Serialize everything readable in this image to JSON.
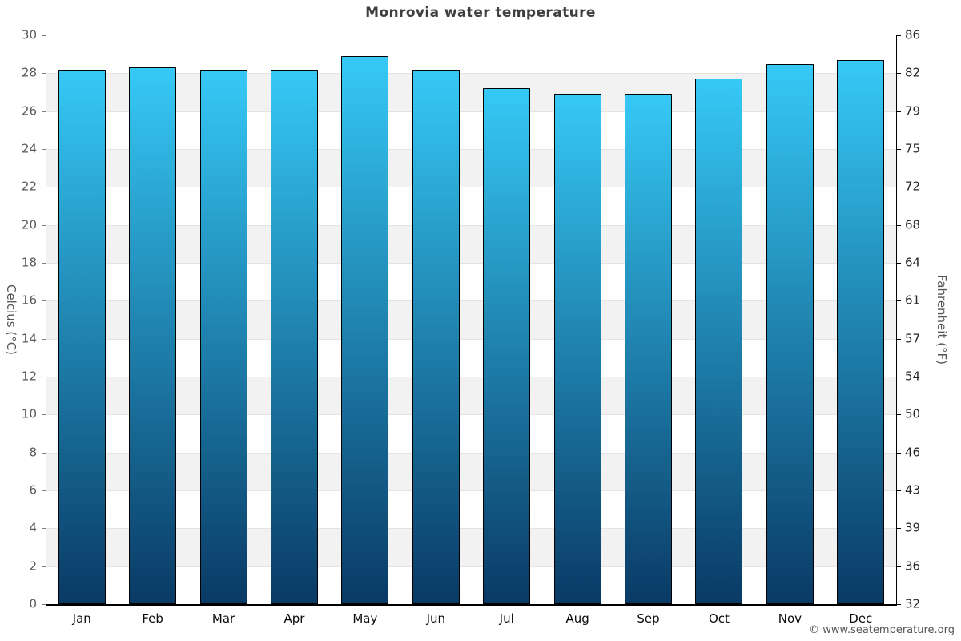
{
  "chart_data": {
    "type": "bar",
    "title": "Monrovia water temperature",
    "categories": [
      "Jan",
      "Feb",
      "Mar",
      "Apr",
      "May",
      "Jun",
      "Jul",
      "Aug",
      "Sep",
      "Oct",
      "Nov",
      "Dec"
    ],
    "values": [
      28.2,
      28.3,
      28.2,
      28.2,
      28.9,
      28.2,
      27.2,
      26.9,
      26.9,
      27.7,
      28.5,
      28.7
    ],
    "unit": "°C",
    "ylabel_left": "Celcius (°C)",
    "ylabel_right": "Fahrenheit (°F)",
    "ylim": [
      0,
      30
    ],
    "tick_step_celsius": 2,
    "left_ticks": [
      "30",
      "28",
      "26",
      "24",
      "22",
      "20",
      "18",
      "16",
      "14",
      "12",
      "10",
      "8",
      "6",
      "4",
      "2",
      "0"
    ],
    "right_ticks": [
      "86",
      "82",
      "79",
      "75",
      "72",
      "68",
      "64",
      "61",
      "57",
      "54",
      "50",
      "46",
      "43",
      "39",
      "36",
      "32"
    ],
    "legend": "none",
    "grid": "alternating horizontal bands every 2°C",
    "band_color": "#f2f2f2",
    "bar_gradient_top": "#36c9f6",
    "bar_gradient_bottom": "#093a65",
    "bar_border_color": "#000000",
    "title_color": "#3f3f3f"
  },
  "footer": {
    "copyright": "© www.seatemperature.org"
  }
}
